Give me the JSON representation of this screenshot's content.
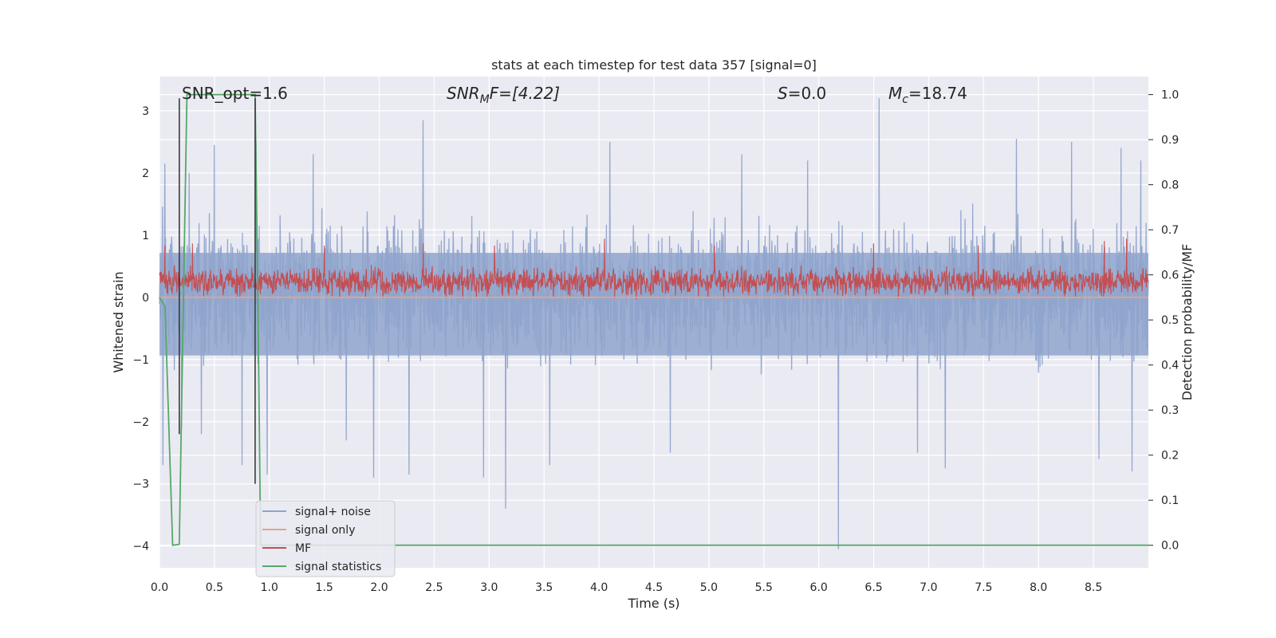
{
  "chart_data": {
    "type": "line",
    "title": "stats at each timestep for test data 357 [signal=0]",
    "xlabel": "Time (s)",
    "ylabel": "Whitened strain",
    "y2label": "Detection probability/MF",
    "xlim": [
      0.0,
      9.0
    ],
    "ylim": [
      -4.35,
      3.55
    ],
    "y2lim": [
      -0.05,
      1.04
    ],
    "x_ticks": [
      0.0,
      0.5,
      1.0,
      1.5,
      2.0,
      2.5,
      3.0,
      3.5,
      4.0,
      4.5,
      5.0,
      5.5,
      6.0,
      6.5,
      7.0,
      7.5,
      8.0,
      8.5
    ],
    "x_tick_labels": [
      "0.0",
      "0.5",
      "1.0",
      "1.5",
      "2.0",
      "2.5",
      "3.0",
      "3.5",
      "4.0",
      "4.5",
      "5.0",
      "5.5",
      "6.0",
      "6.5",
      "7.0",
      "7.5",
      "8.0",
      "8.5"
    ],
    "y_ticks": [
      -4,
      -3,
      -2,
      -1,
      0,
      1,
      2,
      3
    ],
    "y_tick_labels": [
      "−4",
      "−3",
      "−2",
      "−1",
      "0",
      "1",
      "2",
      "3"
    ],
    "y2_ticks": [
      0.0,
      0.1,
      0.2,
      0.3,
      0.4,
      0.5,
      0.6,
      0.7,
      0.8,
      0.9,
      1.0
    ],
    "y2_tick_labels": [
      "0.0",
      "0.1",
      "0.2",
      "0.3",
      "0.4",
      "0.5",
      "0.6",
      "0.7",
      "0.8",
      "0.9",
      "1.0"
    ],
    "grid": true,
    "legend_position": "lower-left",
    "annotations": {
      "snr_opt": "SNR_opt=1.6",
      "snr_mf_sym": "SNR",
      "snr_mf_sub": "M",
      "snr_mf_rest": "F=[4.22]",
      "s_sym": "S",
      "s_rest": "=0.0",
      "mc_sym": "M",
      "mc_sub": "c",
      "mc_rest": "=18.74"
    },
    "series": [
      {
        "name": "signal+ noise",
        "color": "#8fa4cc",
        "kind": "noise",
        "time_range": [
          0.0,
          9.0
        ],
        "typical_range": [
          -1.1,
          1.3
        ],
        "spikes": [
          {
            "x": 0.03,
            "y": -2.7
          },
          {
            "x": 0.05,
            "y": 2.15
          },
          {
            "x": 0.2,
            "y": -2.1
          },
          {
            "x": 0.27,
            "y": 2.0
          },
          {
            "x": 0.38,
            "y": -2.2
          },
          {
            "x": 0.5,
            "y": 2.45
          },
          {
            "x": 0.75,
            "y": -2.7
          },
          {
            "x": 0.88,
            "y": 2.5
          },
          {
            "x": 0.98,
            "y": -2.85
          },
          {
            "x": 1.4,
            "y": 2.3
          },
          {
            "x": 1.7,
            "y": -2.3
          },
          {
            "x": 1.95,
            "y": -2.9
          },
          {
            "x": 2.27,
            "y": -2.85
          },
          {
            "x": 2.4,
            "y": 2.85
          },
          {
            "x": 2.95,
            "y": -2.9
          },
          {
            "x": 3.15,
            "y": -3.4
          },
          {
            "x": 3.55,
            "y": -2.7
          },
          {
            "x": 4.1,
            "y": 2.5
          },
          {
            "x": 4.65,
            "y": -2.5
          },
          {
            "x": 5.3,
            "y": 2.3
          },
          {
            "x": 5.9,
            "y": 2.2
          },
          {
            "x": 6.18,
            "y": -4.05
          },
          {
            "x": 6.55,
            "y": 3.2
          },
          {
            "x": 6.9,
            "y": -2.5
          },
          {
            "x": 7.15,
            "y": -2.75
          },
          {
            "x": 7.8,
            "y": 2.55
          },
          {
            "x": 8.3,
            "y": 2.5
          },
          {
            "x": 8.55,
            "y": -2.6
          },
          {
            "x": 8.75,
            "y": 2.4
          },
          {
            "x": 8.85,
            "y": -2.8
          },
          {
            "x": 8.93,
            "y": 2.2
          }
        ]
      },
      {
        "name": "signal only",
        "color": "#e3a58a",
        "kind": "line",
        "x": [
          0.0,
          9.0
        ],
        "y": [
          0.0,
          0.0
        ]
      },
      {
        "name": "MF",
        "color": "#c44e52",
        "kind": "mf",
        "axis": "y2",
        "time_range": [
          0.0,
          9.0
        ],
        "typical_range": [
          0.55,
          0.62
        ],
        "spikes": [
          {
            "x": 0.05,
            "y": 0.665
          },
          {
            "x": 0.3,
            "y": 0.67
          },
          {
            "x": 1.5,
            "y": 0.665
          },
          {
            "x": 2.4,
            "y": 0.67
          },
          {
            "x": 3.05,
            "y": 0.665
          },
          {
            "x": 4.05,
            "y": 0.68
          },
          {
            "x": 5.05,
            "y": 0.665
          },
          {
            "x": 6.5,
            "y": 0.67
          },
          {
            "x": 7.45,
            "y": 0.665
          },
          {
            "x": 8.6,
            "y": 0.675
          },
          {
            "x": 8.8,
            "y": 0.68
          }
        ]
      },
      {
        "name": "signal statistics",
        "color": "#55a868",
        "kind": "line",
        "axis": "y2",
        "x": [
          0.0,
          0.05,
          0.12,
          0.18,
          0.25,
          0.87,
          0.9,
          0.92,
          9.0
        ],
        "y": [
          0.55,
          0.53,
          0.0,
          0.002,
          1.0,
          1.0,
          0.45,
          0.0,
          0.0
        ]
      },
      {
        "name": "",
        "color": "#3a3a3a",
        "kind": "vline",
        "x": [
          0.18,
          0.18
        ],
        "y": [
          -2.2,
          3.2
        ]
      },
      {
        "name": "",
        "color": "#3a3a3a",
        "kind": "vline",
        "x": [
          0.87,
          0.87
        ],
        "y": [
          -3.0,
          3.2
        ]
      }
    ]
  }
}
